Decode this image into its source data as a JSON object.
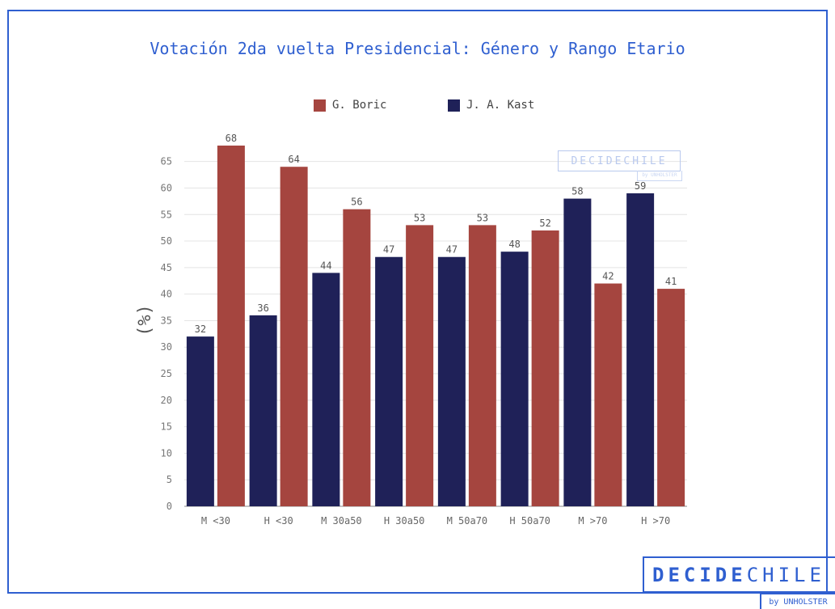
{
  "title": "Votación 2da vuelta Presidencial: Género y Rango Etario",
  "colors": {
    "boric": "#a5453f",
    "kast": "#1f2158",
    "accent": "#2f5fd0"
  },
  "chart_data": {
    "type": "bar",
    "title": "Votación 2da vuelta Presidencial: Género y Rango Etario",
    "ylabel": "(%)",
    "xlabel": "",
    "categories": [
      "M <30",
      "H <30",
      "M 30a50",
      "H 30a50",
      "M 50a70",
      "H 50a70",
      "M >70",
      "H >70"
    ],
    "series": [
      {
        "name": "J. A. Kast",
        "color": "#1f2158",
        "values": [
          32,
          36,
          44,
          47,
          47,
          48,
          58,
          59
        ]
      },
      {
        "name": "G. Boric",
        "color": "#a5453f",
        "values": [
          68,
          64,
          56,
          53,
          53,
          52,
          42,
          41
        ]
      }
    ],
    "ylim": [
      0,
      68
    ],
    "yticks": [
      0,
      5,
      10,
      15,
      20,
      25,
      30,
      35,
      40,
      45,
      50,
      55,
      60,
      65
    ],
    "grid": true,
    "legend_position": "top-center"
  },
  "legend": [
    {
      "label": "G. Boric",
      "color": "#a5453f"
    },
    {
      "label": "J. A. Kast",
      "color": "#1f2158"
    }
  ],
  "watermark": {
    "main": "DECIDECHILE",
    "sub": "by UNHOLSTER"
  },
  "brand": {
    "bold": "DECIDE",
    "light": "CHILE",
    "sub": "by UNHOLSTER"
  }
}
